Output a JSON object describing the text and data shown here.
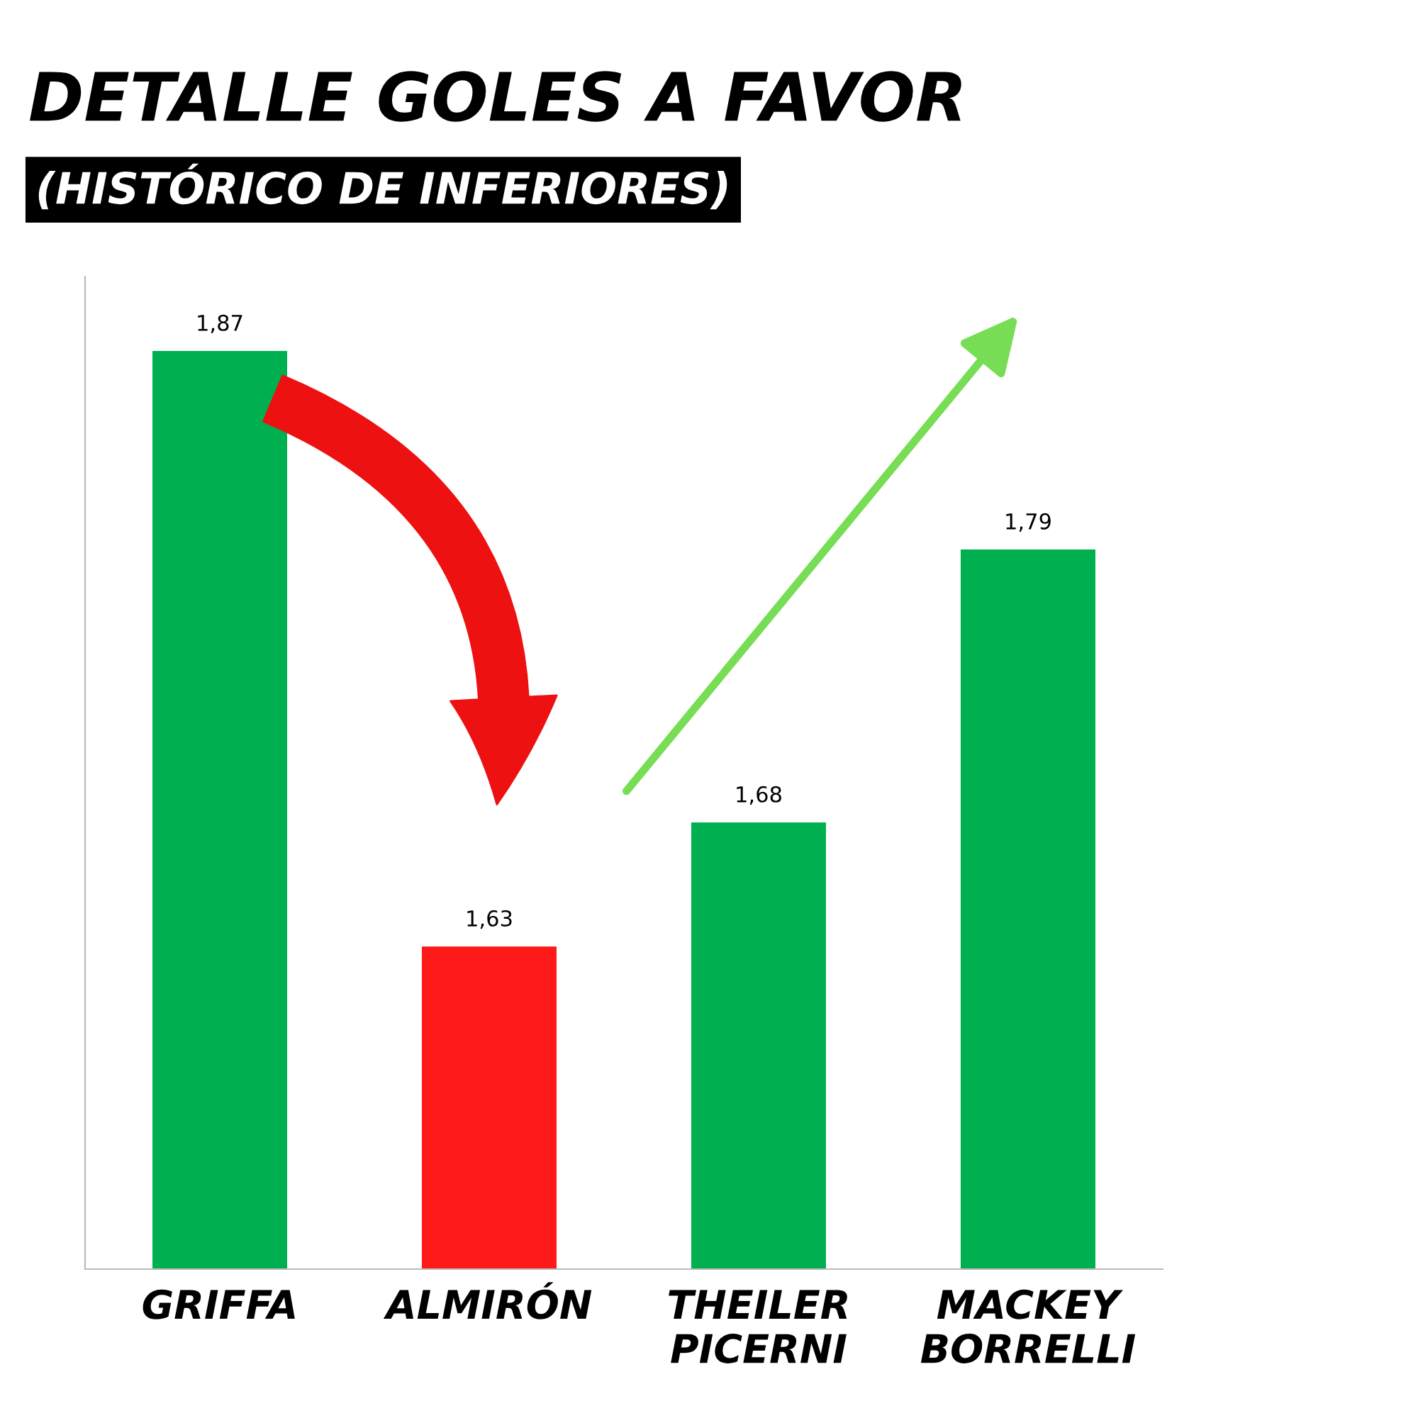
{
  "chart_data": {
    "type": "bar",
    "title": "DETALLE GOLES A FAVOR",
    "subtitle": "(HISTÓRICO DE INFERIORES)",
    "categories": [
      "GRIFFA",
      "ALMIRÓN",
      "THEILER\nPICERNI",
      "MACKEY\nBORRELLI"
    ],
    "values": [
      1.87,
      1.63,
      1.68,
      1.79
    ],
    "colors": [
      "#00b050",
      "#ff1a1a",
      "#00b050",
      "#00b050"
    ],
    "value_labels": [
      "1,87",
      "1,63",
      "1,68",
      "1,79"
    ],
    "ylim": [
      1.5,
      1.9
    ],
    "tick_labels": "x",
    "grid": false,
    "legend": false
  }
}
